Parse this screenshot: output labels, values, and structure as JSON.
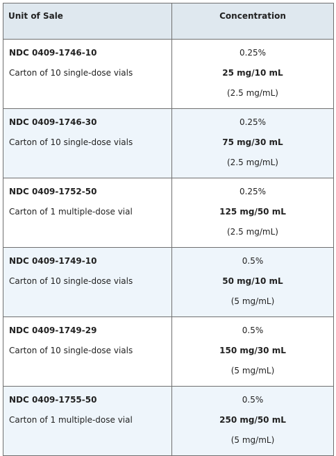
{
  "headers": {
    "unit": "Unit of Sale",
    "conc": "Concentration"
  },
  "rows": [
    {
      "ndc": "NDC 0409-1746-10",
      "desc": "Carton of 10 single-dose vials",
      "pct": "0.25%",
      "amount": "25 mg/10 mL",
      "per_ml": "(2.5 mg/mL)"
    },
    {
      "ndc": "NDC 0409-1746-30",
      "desc": "Carton of 10 single-dose vials",
      "pct": "0.25%",
      "amount": "75 mg/30 mL",
      "per_ml": "(2.5 mg/mL)"
    },
    {
      "ndc": "NDC 0409-1752-50",
      "desc": "Carton of 1 multiple-dose vial",
      "pct": "0.25%",
      "amount": "125 mg/50 mL",
      "per_ml": "(2.5 mg/mL)"
    },
    {
      "ndc": "NDC 0409-1749-10",
      "desc": "Carton of 10 single-dose vials",
      "pct": "0.5%",
      "amount": "50 mg/10 mL",
      "per_ml": "(5 mg/mL)"
    },
    {
      "ndc": "NDC 0409-1749-29",
      "desc": "Carton of 10 single-dose vials",
      "pct": "0.5%",
      "amount": "150 mg/30 mL",
      "per_ml": "(5 mg/mL)"
    },
    {
      "ndc": "NDC 0409-1755-50",
      "desc": "Carton of 1 multiple-dose vial",
      "pct": "0.5%",
      "amount": "250 mg/50 mL",
      "per_ml": "(5 mg/mL)"
    }
  ],
  "colors": {
    "header_bg": "#dfe8ef",
    "alt_row_bg": "#eef5fb",
    "border": "#6f6f6f"
  }
}
